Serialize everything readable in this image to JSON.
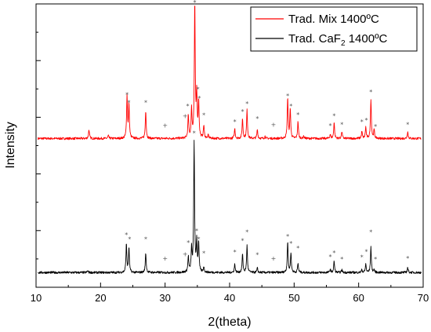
{
  "chart_data": {
    "type": "line",
    "xlabel": "2(theta)",
    "ylabel": "Intensity",
    "xlim": [
      10,
      70
    ],
    "ylim": [
      0,
      100
    ],
    "x_ticks": [
      "10",
      "20",
      "30",
      "40",
      "50",
      "60",
      "70"
    ],
    "yticks_labeled": false,
    "grid": false,
    "legend_position": "top-right",
    "legend": [
      {
        "text": "Trad. Mix 1400ºC",
        "color": "#ff0000"
      },
      {
        "text": "Trad. CaF",
        "sub": "2",
        "tail": " 1400ºC",
        "color": "#000000"
      }
    ],
    "series": [
      {
        "name": "Trad. Mix 1400ºC",
        "color": "#ff0000",
        "baseline": 52.5,
        "peaks": [
          [
            18.2,
            3.2
          ],
          [
            21.2,
            1.0
          ],
          [
            24.1,
            15.0
          ],
          [
            24.4,
            12.0
          ],
          [
            27.0,
            10.0
          ],
          [
            33.6,
            8.0
          ],
          [
            34.1,
            10.0
          ],
          [
            34.6,
            48.0
          ],
          [
            34.9,
            14.5
          ],
          [
            35.2,
            13.0
          ],
          [
            36.0,
            4.5
          ],
          [
            36.7,
            1.2
          ],
          [
            40.8,
            3.5
          ],
          [
            42.0,
            7.0
          ],
          [
            42.7,
            10.0
          ],
          [
            44.3,
            3.2
          ],
          [
            45.5,
            0.8
          ],
          [
            49.0,
            14.5
          ],
          [
            49.4,
            10.5
          ],
          [
            50.6,
            6.0
          ],
          [
            51.5,
            0.8
          ],
          [
            55.6,
            1.5
          ],
          [
            56.2,
            5.8
          ],
          [
            57.4,
            2.5
          ],
          [
            60.5,
            2.5
          ],
          [
            61.1,
            4.0
          ],
          [
            61.9,
            14.0
          ],
          [
            62.4,
            3.0
          ],
          [
            67.6,
            2.5
          ]
        ],
        "markers": [
          {
            "x": 34.6,
            "y": 100.5,
            "symbol": "*"
          },
          {
            "x": 24.1,
            "y": 68.0,
            "symbol": "*"
          },
          {
            "x": 24.4,
            "y": 65.2,
            "symbol": "*"
          },
          {
            "x": 27.0,
            "y": 65.2,
            "symbol": "*"
          },
          {
            "x": 33.5,
            "y": 64.0,
            "symbol": "*"
          },
          {
            "x": 35.1,
            "y": 70.0,
            "symbol": "*"
          },
          {
            "x": 35.3,
            "y": 66.7,
            "symbol": "*"
          },
          {
            "x": 36.0,
            "y": 60.8,
            "symbol": "*"
          },
          {
            "x": 42.7,
            "y": 64.8,
            "symbol": "*"
          },
          {
            "x": 42.0,
            "y": 62.0,
            "symbol": "*"
          },
          {
            "x": 40.8,
            "y": 58.5,
            "symbol": "*"
          },
          {
            "x": 44.3,
            "y": 59.5,
            "symbol": "*"
          },
          {
            "x": 49.0,
            "y": 67.6,
            "symbol": "*"
          },
          {
            "x": 49.5,
            "y": 64.0,
            "symbol": "*"
          },
          {
            "x": 50.6,
            "y": 61.0,
            "symbol": "*"
          },
          {
            "x": 55.6,
            "y": 57.0,
            "symbol": "*"
          },
          {
            "x": 56.2,
            "y": 60.5,
            "symbol": "*"
          },
          {
            "x": 57.4,
            "y": 57.5,
            "symbol": "*"
          },
          {
            "x": 60.5,
            "y": 58.5,
            "symbol": "*"
          },
          {
            "x": 61.2,
            "y": 59.0,
            "symbol": "*"
          },
          {
            "x": 61.9,
            "y": 69.0,
            "symbol": "*"
          },
          {
            "x": 62.6,
            "y": 56.8,
            "symbol": "*"
          },
          {
            "x": 67.6,
            "y": 57.5,
            "symbol": "*"
          },
          {
            "x": 30.0,
            "y": 57.2,
            "symbol": "+"
          },
          {
            "x": 33.1,
            "y": 60.5,
            "symbol": "+"
          },
          {
            "x": 46.8,
            "y": 57.5,
            "symbol": "+"
          }
        ]
      },
      {
        "name": "Trad. CaF2 1400ºC",
        "color": "#000000",
        "baseline": 5.2,
        "peaks": [
          [
            18.0,
            0.6
          ],
          [
            24.0,
            10.0
          ],
          [
            24.4,
            8.5
          ],
          [
            27.0,
            7.0
          ],
          [
            33.6,
            5.5
          ],
          [
            34.1,
            8.0
          ],
          [
            34.5,
            46.0
          ],
          [
            34.9,
            10.5
          ],
          [
            35.2,
            10.5
          ],
          [
            36.0,
            2.0
          ],
          [
            40.8,
            3.0
          ],
          [
            42.0,
            6.5
          ],
          [
            42.7,
            9.5
          ],
          [
            44.3,
            1.5
          ],
          [
            49.0,
            11.0
          ],
          [
            49.5,
            7.0
          ],
          [
            50.6,
            3.2
          ],
          [
            55.6,
            1.2
          ],
          [
            56.2,
            4.0
          ],
          [
            57.4,
            1.0
          ],
          [
            60.5,
            1.0
          ],
          [
            61.1,
            3.0
          ],
          [
            61.9,
            9.0
          ],
          [
            62.4,
            1.0
          ],
          [
            67.6,
            1.8
          ]
        ],
        "markers": [
          {
            "x": 34.5,
            "y": 54.5,
            "symbol": "*"
          },
          {
            "x": 24.0,
            "y": 18.6,
            "symbol": "*"
          },
          {
            "x": 24.5,
            "y": 17.0,
            "symbol": "*"
          },
          {
            "x": 27.0,
            "y": 17.0,
            "symbol": "*"
          },
          {
            "x": 33.6,
            "y": 15.8,
            "symbol": "*"
          },
          {
            "x": 34.9,
            "y": 20.0,
            "symbol": "*"
          },
          {
            "x": 35.2,
            "y": 17.0,
            "symbol": "*"
          },
          {
            "x": 36.0,
            "y": 12.0,
            "symbol": "*"
          },
          {
            "x": 40.8,
            "y": 12.5,
            "symbol": "*"
          },
          {
            "x": 42.0,
            "y": 16.5,
            "symbol": "*"
          },
          {
            "x": 42.7,
            "y": 19.5,
            "symbol": "*"
          },
          {
            "x": 44.3,
            "y": 11.5,
            "symbol": "*"
          },
          {
            "x": 49.0,
            "y": 18.0,
            "symbol": "*"
          },
          {
            "x": 49.5,
            "y": 15.5,
            "symbol": "*"
          },
          {
            "x": 50.6,
            "y": 13.8,
            "symbol": "*"
          },
          {
            "x": 55.6,
            "y": 10.8,
            "symbol": "*"
          },
          {
            "x": 56.2,
            "y": 12.2,
            "symbol": "*"
          },
          {
            "x": 57.4,
            "y": 10.0,
            "symbol": "*"
          },
          {
            "x": 60.5,
            "y": 10.6,
            "symbol": "*"
          },
          {
            "x": 61.2,
            "y": 12.6,
            "symbol": "*"
          },
          {
            "x": 61.9,
            "y": 19.5,
            "symbol": "*"
          },
          {
            "x": 62.6,
            "y": 10.0,
            "symbol": "*"
          },
          {
            "x": 67.6,
            "y": 10.3,
            "symbol": "*"
          },
          {
            "x": 30.0,
            "y": 10.2,
            "symbol": "+"
          },
          {
            "x": 33.1,
            "y": 11.8,
            "symbol": "+"
          },
          {
            "x": 46.8,
            "y": 10.2,
            "symbol": "+"
          }
        ]
      }
    ]
  }
}
